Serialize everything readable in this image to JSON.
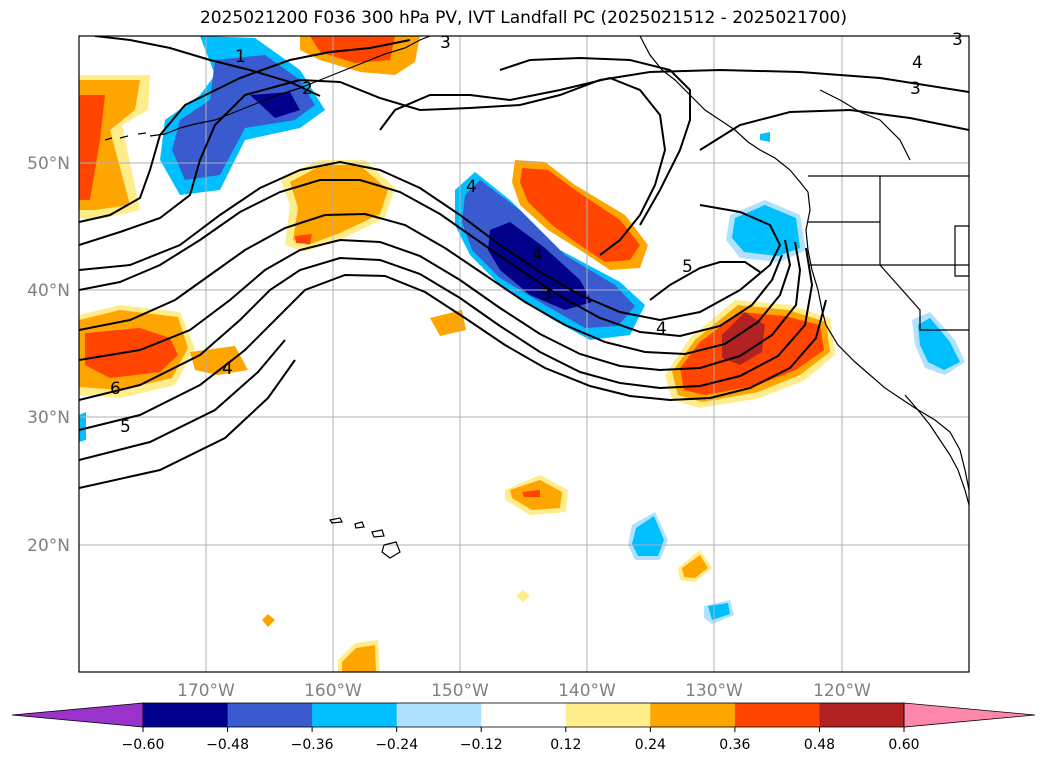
{
  "title": "2025021200 F036 300 hPa PV, IVT Landfall PC (2025021512 - 2025021700)",
  "map": {
    "lat_labels": [
      "50°N",
      "40°N",
      "30°N",
      "20°N"
    ],
    "lon_labels": [
      "170°W",
      "160°W",
      "150°W",
      "140°W",
      "130°W",
      "120°W"
    ],
    "contour_labels": [
      "1",
      "2",
      "3",
      "3",
      "4",
      "3",
      "4",
      "4",
      "5",
      "4",
      "6",
      "5",
      "3",
      "4"
    ]
  },
  "colorbar": {
    "ticks": [
      "−0.60",
      "−0.48",
      "−0.36",
      "−0.24",
      "−0.12",
      "0.12",
      "0.24",
      "0.36",
      "0.48",
      "0.60"
    ],
    "colors": {
      "under": "#9933cc",
      "bins": [
        "#00008b",
        "#3a5ad0",
        "#00bfff",
        "#b0e2ff",
        "#ffffff",
        "#ffec8b",
        "#ffa500",
        "#ff4500",
        "#b22222"
      ],
      "over": "#ff88aa"
    }
  }
}
